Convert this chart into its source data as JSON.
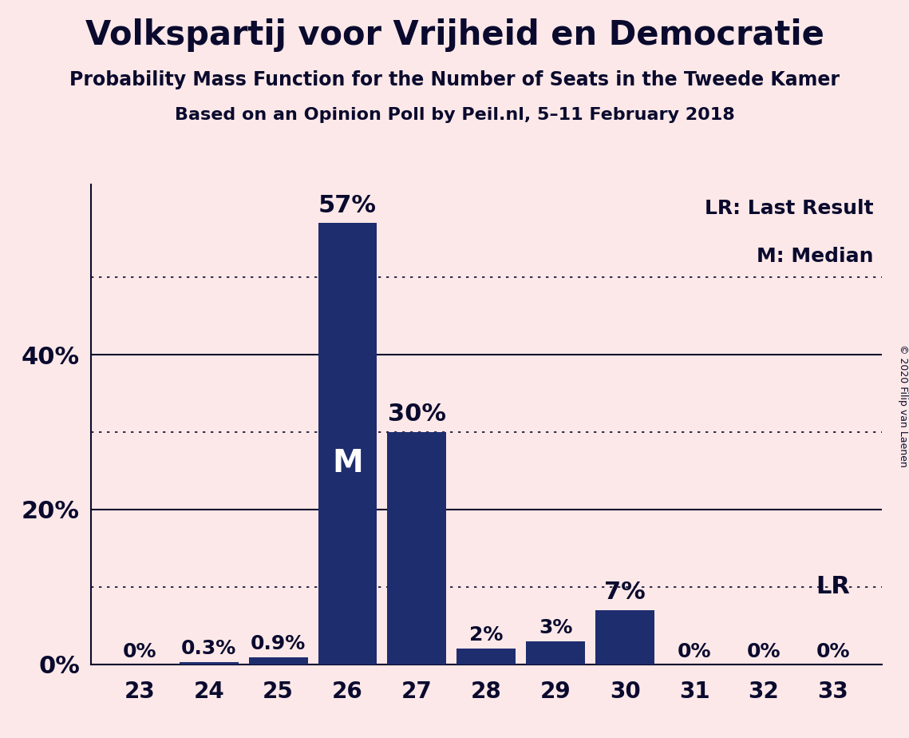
{
  "title": "Volkspartij voor Vrijheid en Democratie",
  "subtitle1": "Probability Mass Function for the Number of Seats in the Tweede Kamer",
  "subtitle2": "Based on an Opinion Poll by Peil.nl, 5–11 February 2018",
  "copyright": "© 2020 Filip van Laenen",
  "legend_lr": "LR: Last Result",
  "legend_m": "M: Median",
  "categories": [
    23,
    24,
    25,
    26,
    27,
    28,
    29,
    30,
    31,
    32,
    33
  ],
  "values": [
    0.0,
    0.3,
    0.9,
    57.0,
    30.0,
    2.0,
    3.0,
    7.0,
    0.0,
    0.0,
    0.0
  ],
  "bar_labels": [
    "0%",
    "0.3%",
    "0.9%",
    "57%",
    "30%",
    "2%",
    "3%",
    "7%",
    "0%",
    "0%",
    "0%"
  ],
  "bar_color": "#1e2d6e",
  "background_color": "#fce8e8",
  "text_color": "#0a0a2e",
  "median_bar_index": 3,
  "median_label": "M",
  "lr_bar_index": 10,
  "lr_label": "LR",
  "yticks_solid": [
    0,
    20,
    40
  ],
  "yticks_dotted": [
    10,
    30,
    50
  ],
  "ylim": [
    0,
    62
  ],
  "xlim": [
    22.3,
    33.7
  ],
  "title_fontsize": 30,
  "subtitle1_fontsize": 17,
  "subtitle2_fontsize": 16,
  "ylabel_fontsize": 22,
  "xlabel_fontsize": 20,
  "bar_label_fontsize_large": 22,
  "bar_label_fontsize_small": 18,
  "median_fontsize": 28,
  "lr_fontsize": 22,
  "legend_fontsize": 18,
  "copyright_fontsize": 9
}
